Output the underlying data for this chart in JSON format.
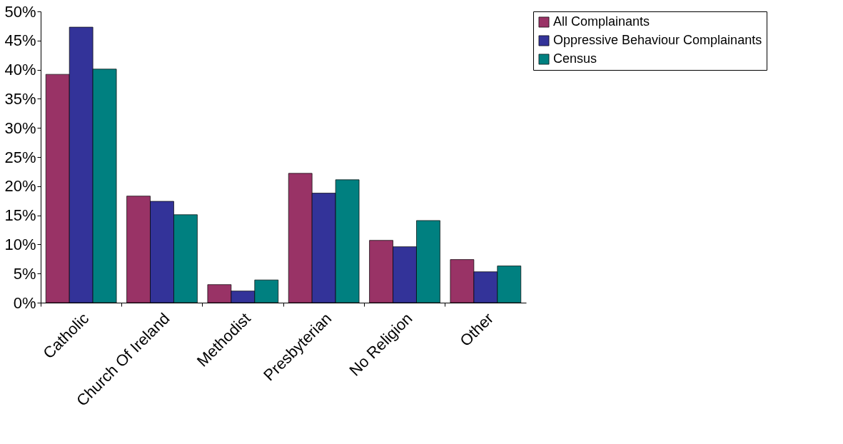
{
  "chart_data": {
    "type": "bar",
    "categories": [
      "Catholic",
      "Church Of Ireland",
      "Methodist",
      "Presbyterian",
      "No Religion",
      "Other"
    ],
    "series": [
      {
        "name": "All Complainants",
        "color": "#993366",
        "values": [
          39.2,
          18.3,
          3.1,
          22.2,
          10.7,
          7.4
        ]
      },
      {
        "name": "Oppressive Behaviour Complainants",
        "color": "#333399",
        "values": [
          47.3,
          17.4,
          2.0,
          18.8,
          9.6,
          5.3
        ]
      },
      {
        "name": "Census",
        "color": "#008080",
        "values": [
          40.1,
          15.1,
          3.9,
          21.1,
          14.1,
          6.3
        ]
      }
    ],
    "ylim": [
      0,
      50
    ],
    "yticks": [
      {
        "value": 0,
        "label": "0%"
      },
      {
        "value": 5,
        "label": "5%"
      },
      {
        "value": 10,
        "label": "10%"
      },
      {
        "value": 15,
        "label": "15%"
      },
      {
        "value": 20,
        "label": "20%"
      },
      {
        "value": 25,
        "label": "25%"
      },
      {
        "value": 30,
        "label": "30%"
      },
      {
        "value": 35,
        "label": "35%"
      },
      {
        "value": 40,
        "label": "40%"
      },
      {
        "value": 45,
        "label": "45%"
      },
      {
        "value": 50,
        "label": "50%"
      }
    ],
    "grid": false,
    "legend": "right"
  }
}
